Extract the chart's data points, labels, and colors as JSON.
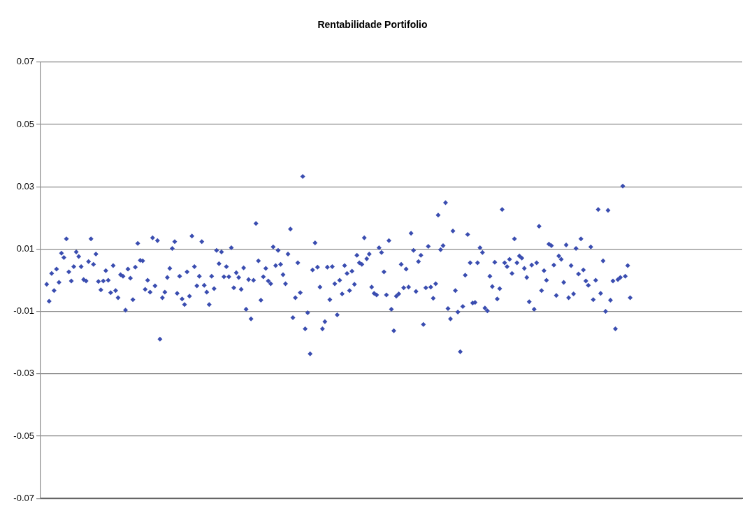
{
  "chart_data": {
    "type": "scatter",
    "title": "Rentabilidade Portifolio",
    "categories": [
      null,
      null,
      null,
      null,
      null,
      null,
      null,
      null,
      null,
      null,
      null,
      null,
      null,
      null,
      null,
      null,
      null,
      null,
      null,
      null,
      null,
      null,
      null,
      null,
      null,
      null,
      null,
      null,
      null,
      null,
      null,
      null,
      null,
      null,
      null,
      null,
      null,
      null,
      null,
      null,
      null,
      null,
      null,
      null,
      null,
      null,
      null,
      null,
      null,
      null,
      null,
      null,
      null,
      null,
      null,
      null,
      null,
      null,
      null,
      null,
      null,
      null,
      null,
      null,
      null,
      null,
      null,
      null,
      null,
      null,
      null,
      null,
      null,
      null,
      null,
      null,
      null,
      null,
      null,
      null,
      null,
      null,
      null,
      null,
      null,
      null,
      null,
      null,
      null,
      null,
      null,
      null,
      null,
      null,
      null,
      null,
      null,
      null,
      null,
      null,
      null,
      null,
      null,
      null,
      null,
      null,
      null,
      null,
      null,
      null,
      null,
      null,
      null,
      null,
      null,
      null,
      null,
      null,
      null,
      null,
      null,
      null,
      null,
      null,
      null,
      null,
      null,
      null,
      null,
      null,
      null,
      null,
      null,
      null,
      null,
      null,
      null,
      null,
      null,
      null,
      null,
      null,
      null,
      null,
      null,
      null,
      null,
      null,
      null,
      null,
      null,
      null,
      null,
      null,
      null,
      null,
      null,
      null,
      null,
      null,
      null,
      null,
      null,
      null,
      null,
      null,
      null,
      null,
      null,
      null,
      null,
      null,
      null,
      null,
      null,
      null,
      null,
      null,
      null,
      null,
      null,
      null,
      null,
      null,
      null,
      null,
      null,
      null,
      null,
      null,
      null,
      null,
      null,
      null,
      null,
      null,
      null,
      null,
      null,
      null,
      null,
      null,
      null,
      null,
      null,
      null,
      null,
      null,
      null,
      null,
      null,
      null,
      null,
      null,
      null,
      null,
      null,
      null,
      null,
      null,
      null,
      null,
      null,
      null,
      null,
      null,
      null,
      null,
      null,
      null,
      null,
      null,
      null,
      null,
      null,
      null,
      null,
      null,
      null,
      null,
      null,
      null,
      null,
      null,
      null,
      null,
      null,
      null,
      null,
      null,
      null,
      null,
      null,
      null,
      null,
      null,
      null,
      null,
      null,
      null,
      null,
      null,
      null,
      null,
      null,
      null,
      null,
      null,
      null,
      null,
      null,
      null,
      null,
      null,
      null,
      null,
      null,
      null,
      null,
      null,
      null,
      null,
      null,
      null,
      null
    ],
    "series": [
      {
        "color": "#3a4db0",
        "values": [
          null,
          null,
          -0.0013,
          -0.0067,
          0.0022,
          -0.0033,
          0.0036,
          -0.0007,
          0.0087,
          0.0073,
          0.0133,
          0.0027,
          -0.0002,
          0.0044,
          0.0091,
          0.0076,
          0.0044,
          0.0002,
          -0.0002,
          0.006,
          0.0133,
          0.0051,
          0.0084,
          -0.0004,
          -0.0031,
          -0.0002,
          0.0031,
          0,
          -0.004,
          0.0047,
          -0.0033,
          -0.0056,
          0.0018,
          0.0013,
          -0.0096,
          0.0036,
          0.0007,
          -0.0062,
          0.0042,
          0.0118,
          0.0064,
          0.0062,
          -0.0029,
          0,
          -0.0038,
          0.0136,
          -0.0018,
          0.0127,
          -0.0189,
          -0.0056,
          -0.0038,
          0.0009,
          0.0038,
          0.0102,
          0.0124,
          -0.0042,
          0.0013,
          -0.006,
          -0.0078,
          0.0027,
          -0.0051,
          0.0142,
          0.0044,
          -0.0018,
          0.0013,
          0.0124,
          -0.0016,
          -0.0038,
          -0.0078,
          0.0013,
          -0.0027,
          0.0096,
          0.0053,
          0.0091,
          0.0011,
          0.0044,
          0.0011,
          0.0104,
          -0.0024,
          0.0024,
          0.0009,
          -0.0029,
          0.004,
          -0.0093,
          0.0002,
          -0.0124,
          0,
          0.0182,
          0.0062,
          -0.0064,
          0.0011,
          0.0038,
          -0.0002,
          -0.0011,
          0.0107,
          0.0047,
          0.0096,
          0.0051,
          0.0018,
          -0.0011,
          0.0084,
          0.0164,
          -0.012,
          -0.0056,
          0.0056,
          -0.004,
          0.0333,
          -0.0156,
          -0.0104,
          -0.0236,
          0.0033,
          0.012,
          0.0042,
          -0.0022,
          -0.0156,
          -0.0133,
          0.0042,
          -0.0062,
          0.0044,
          -0.0011,
          -0.0111,
          0,
          -0.0044,
          0.0047,
          0.0022,
          -0.0033,
          0.0029,
          -0.0013,
          0.008,
          0.0056,
          0.0051,
          0.0136,
          0.0069,
          0.0084,
          -0.0022,
          -0.0042,
          -0.0047,
          0.0104,
          0.0089,
          0.0027,
          -0.0047,
          0.0127,
          -0.0093,
          -0.0162,
          -0.0051,
          -0.0044,
          0.0051,
          -0.0024,
          0.0036,
          -0.0022,
          0.0151,
          0.0096,
          -0.0036,
          0.006,
          0.008,
          -0.0142,
          -0.0024,
          0.0109,
          -0.0022,
          -0.0058,
          -0.0011,
          0.0209,
          0.0098,
          0.0111,
          0.0249,
          -0.0091,
          -0.0124,
          0.0158,
          -0.0033,
          -0.0102,
          -0.0229,
          -0.0084,
          0.0016,
          0.0147,
          0.0056,
          -0.0073,
          -0.0071,
          0.0056,
          0.0104,
          0.0089,
          -0.0089,
          -0.0098,
          0.0013,
          -0.002,
          0.0058,
          -0.006,
          -0.0027,
          0.0227,
          0.0056,
          0.0044,
          0.0067,
          0.0022,
          0.0133,
          0.0056,
          0.0078,
          0.0071,
          0.0038,
          0.0009,
          -0.0069,
          0.0049,
          -0.0093,
          0.0056,
          0.0173,
          -0.0033,
          0.0031,
          0,
          0.0116,
          0.0111,
          0.0049,
          -0.0049,
          0.0078,
          0.0067,
          -0.0007,
          0.0113,
          -0.0056,
          0.0047,
          -0.0044,
          0.0102,
          0.002,
          0.0133,
          0.0033,
          -0.0002,
          -0.0016,
          0.0107,
          -0.0062,
          0,
          0.0227,
          -0.0042,
          0.0062,
          -0.01,
          0.0224,
          -0.0064,
          -0.0002,
          -0.0156,
          0.0002,
          0.0009,
          0.0302,
          0.0013,
          0.0047,
          -0.0056,
          null,
          null,
          null,
          null,
          null,
          null,
          null,
          null,
          null,
          null,
          null,
          null,
          null,
          null,
          null,
          null,
          null,
          null,
          null,
          null,
          null,
          null,
          null,
          null,
          null,
          null,
          null,
          null,
          null,
          null,
          null,
          null,
          null,
          null,
          null,
          null,
          null,
          null,
          null,
          null,
          null,
          null,
          null,
          null,
          null
        ]
      }
    ],
    "ylim": [
      -0.07,
      0.07
    ],
    "yticks": [
      -0.07,
      -0.05,
      -0.03,
      -0.01,
      0.01,
      0.03,
      0.05,
      0.07
    ],
    "grid": "y",
    "tick_labels": "y",
    "marker": "diamond",
    "legend": false
  }
}
